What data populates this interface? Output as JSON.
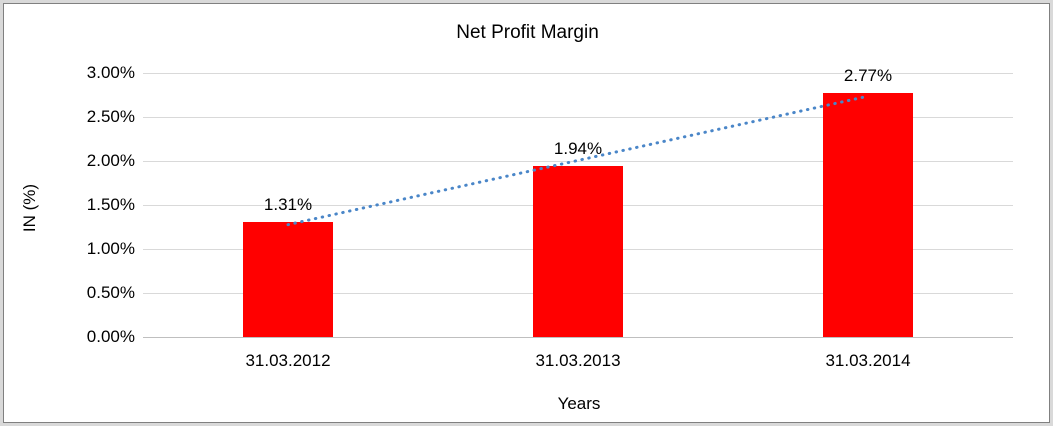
{
  "chart_data": {
    "type": "bar",
    "title": "Net Profit Margin",
    "xlabel": "Years",
    "ylabel": "IN (%)",
    "categories": [
      "31.03.2012",
      "31.03.2013",
      "31.03.2014"
    ],
    "values": [
      1.31,
      1.94,
      2.77
    ],
    "data_labels": [
      "1.31%",
      "1.94%",
      "2.77%"
    ],
    "yticks": [
      "0.00%",
      "0.50%",
      "1.00%",
      "1.50%",
      "2.00%",
      "2.50%",
      "3.00%"
    ],
    "ylim": [
      0,
      3.0
    ],
    "grid": "horizontal",
    "legend": "none",
    "bar_color": "#ff0000",
    "gridline_color": "#d9d9d9",
    "axis_line_color": "#bfbfbf",
    "trendline": {
      "type": "linear",
      "style": "dotted",
      "color": "#4a86c8"
    }
  }
}
